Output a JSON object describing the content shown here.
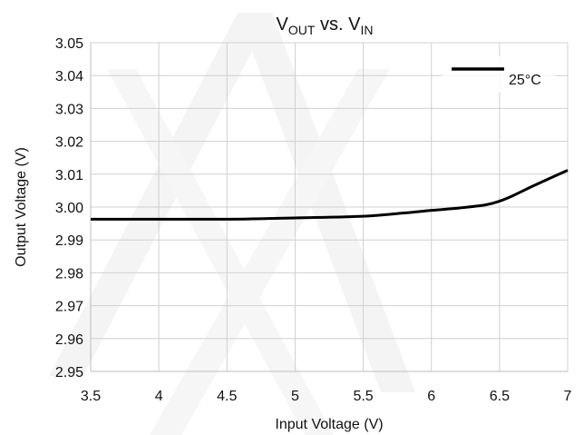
{
  "chart_data": {
    "type": "line",
    "title": {
      "left_main": "V",
      "left_sub": "OUT",
      "middle": " vs. ",
      "right_main": "V",
      "right_sub": "IN"
    },
    "xlabel": "Input Voltage (V)",
    "ylabel": "Output Voltage (V)",
    "xlim": [
      3.5,
      7
    ],
    "ylim": [
      2.95,
      3.05
    ],
    "x_ticks": [
      "3.5",
      "4",
      "4.5",
      "5",
      "5.5",
      "6",
      "6.5",
      "7"
    ],
    "y_ticks": [
      "2.95",
      "2.96",
      "2.97",
      "2.98",
      "2.99",
      "3.00",
      "3.01",
      "3.02",
      "3.03",
      "3.04",
      "3.05"
    ],
    "grid": true,
    "legend_position": "top-right",
    "series": [
      {
        "name": "25°C",
        "color": "#000000",
        "x": [
          3.5,
          4.0,
          4.5,
          4.8,
          5.0,
          5.5,
          5.8,
          6.0,
          6.2,
          6.4,
          6.5,
          6.6,
          6.75,
          7.0
        ],
        "y": [
          2.9963,
          2.9963,
          2.9963,
          2.9965,
          2.9967,
          2.9972,
          2.9982,
          2.999,
          2.9997,
          3.0007,
          3.0018,
          3.0035,
          3.0065,
          3.0112
        ]
      }
    ]
  }
}
